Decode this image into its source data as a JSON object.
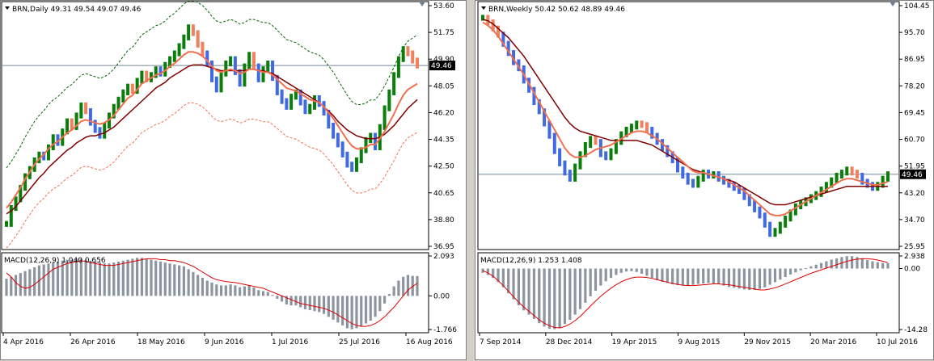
{
  "colors": {
    "bull": "#0a7d0a",
    "bear_dark": "#4169e1",
    "bear_light": "#f08060",
    "ma_fast": "#f07050",
    "ma_slow": "#800000",
    "envelope_up": "#006400",
    "envelope_dn": "#f07050",
    "macd_hist": "#8c94a0",
    "macd_signal": "#e00000",
    "price_line": "#778899"
  },
  "charts": [
    {
      "id": "daily",
      "header": "BRN,Daily  49.31 49.54 49.07 49.46",
      "current_price": "49.46",
      "price_axis": [
        "53.60",
        "51.75",
        "49.90",
        "48.05",
        "46.20",
        "44.35",
        "42.50",
        "40.65",
        "38.80",
        "36.95"
      ],
      "macd_header": "MACD(12,26,9) 1.040 0.656",
      "macd_axis": [
        "2.093",
        "0.00",
        "-1.766"
      ],
      "date_axis": [
        "4 Apr 2016",
        "26 Apr 2016",
        "18 May 2016",
        "9 Jun 2016",
        "1 Jul 2016",
        "25 Jul 2016",
        "16 Aug 2016"
      ],
      "chart_data": {
        "type": "bar",
        "title": "BRN,Daily",
        "ylim": [
          36.95,
          53.6
        ],
        "macd_ylim": [
          -1.766,
          2.093
        ],
        "closes": [
          38.5,
          39.6,
          40.2,
          41.0,
          41.8,
          42.3,
          42.9,
          43.3,
          43.1,
          43.8,
          44.5,
          44.1,
          44.9,
          45.6,
          45.2,
          46.0,
          46.7,
          46.3,
          45.5,
          45.0,
          44.6,
          45.3,
          46.0,
          46.6,
          47.1,
          47.6,
          48.0,
          47.7,
          48.4,
          48.9,
          48.5,
          48.8,
          49.2,
          48.9,
          49.5,
          49.9,
          50.3,
          50.8,
          51.4,
          52.1,
          51.7,
          50.9,
          50.3,
          49.6,
          48.5,
          47.8,
          48.9,
          49.6,
          49.9,
          49.0,
          48.2,
          49.4,
          50.2,
          49.4,
          48.5,
          49.2,
          49.6,
          48.6,
          47.6,
          47.0,
          46.6,
          47.3,
          47.6,
          46.9,
          46.3,
          46.6,
          47.2,
          46.8,
          46.2,
          45.3,
          44.6,
          44.0,
          43.3,
          42.6,
          42.3,
          42.9,
          43.6,
          44.3,
          44.6,
          43.8,
          45.2,
          46.5,
          47.6,
          48.8,
          49.9,
          50.6,
          50.3,
          49.8,
          49.46
        ],
        "ma_fast": [
          39.6,
          40.0,
          40.5,
          41.0,
          41.6,
          42.1,
          42.6,
          43.0,
          43.3,
          43.7,
          44.0,
          44.2,
          44.5,
          44.8,
          45.0,
          45.3,
          45.6,
          45.7,
          45.6,
          45.5,
          45.4,
          45.5,
          45.7,
          46.0,
          46.4,
          46.8,
          47.2,
          47.4,
          47.8,
          48.2,
          48.4,
          48.6,
          48.8,
          48.9,
          49.1,
          49.4,
          49.6,
          49.9,
          50.2,
          50.4,
          50.4,
          50.3,
          50.1,
          49.8,
          49.4,
          49.1,
          49.0,
          49.1,
          49.2,
          49.1,
          48.9,
          49.0,
          49.2,
          49.2,
          49.1,
          49.0,
          49.0,
          48.8,
          48.5,
          48.2,
          47.9,
          47.8,
          47.7,
          47.5,
          47.3,
          47.1,
          47.0,
          46.9,
          46.6,
          46.2,
          45.8,
          45.3,
          44.8,
          44.3,
          43.9,
          43.7,
          43.7,
          43.8,
          44.0,
          44.0,
          44.4,
          44.9,
          45.5,
          46.1,
          46.8,
          47.4,
          47.8,
          48.0,
          48.2
        ],
        "ma_slow": [
          39.2,
          39.4,
          39.7,
          40.1,
          40.5,
          40.9,
          41.3,
          41.7,
          42.0,
          42.4,
          42.7,
          43.0,
          43.3,
          43.6,
          43.8,
          44.1,
          44.3,
          44.5,
          44.6,
          44.6,
          44.7,
          44.8,
          45.0,
          45.2,
          45.5,
          45.8,
          46.1,
          46.4,
          46.7,
          47.0,
          47.3,
          47.6,
          47.9,
          48.1,
          48.3,
          48.6,
          48.8,
          49.0,
          49.2,
          49.4,
          49.5,
          49.5,
          49.5,
          49.4,
          49.3,
          49.2,
          49.1,
          49.1,
          49.1,
          49.1,
          49.1,
          49.1,
          49.2,
          49.2,
          49.1,
          49.1,
          49.0,
          48.9,
          48.7,
          48.5,
          48.3,
          48.1,
          47.9,
          47.7,
          47.5,
          47.3,
          47.1,
          46.9,
          46.6,
          46.3,
          46.0,
          45.6,
          45.3,
          45.0,
          44.8,
          44.6,
          44.5,
          44.4,
          44.4,
          44.4,
          44.5,
          44.7,
          45.0,
          45.3,
          45.7,
          46.1,
          46.5,
          46.8,
          47.1
        ],
        "macd_signal": [
          1.2,
          1.0,
          0.7,
          0.5,
          0.4,
          0.45,
          0.6,
          0.8,
          1.0,
          1.2,
          1.4,
          1.5,
          1.6,
          1.7,
          1.75,
          1.8,
          1.85,
          1.8,
          1.75,
          1.7,
          1.65,
          1.6,
          1.6,
          1.6,
          1.65,
          1.7,
          1.75,
          1.8,
          1.85,
          1.9,
          1.95,
          1.95,
          1.95,
          1.9,
          1.9,
          1.85,
          1.85,
          1.8,
          1.75,
          1.65,
          1.55,
          1.4,
          1.25,
          1.1,
          0.95,
          0.85,
          0.8,
          0.75,
          0.72,
          0.7,
          0.65,
          0.6,
          0.55,
          0.5,
          0.45,
          0.4,
          0.3,
          0.2,
          0.1,
          0.0,
          -0.1,
          -0.2,
          -0.3,
          -0.4,
          -0.45,
          -0.5,
          -0.55,
          -0.6,
          -0.65,
          -0.75,
          -0.85,
          -1.0,
          -1.15,
          -1.3,
          -1.45,
          -1.55,
          -1.6,
          -1.6,
          -1.55,
          -1.45,
          -1.3,
          -1.1,
          -0.85,
          -0.6,
          -0.3,
          0.0,
          0.3,
          0.5,
          0.656
        ],
        "macd_hist": [
          0.9,
          1.0,
          1.1,
          1.2,
          1.3,
          1.4,
          1.5,
          1.6,
          1.65,
          1.7,
          1.75,
          1.8,
          1.85,
          1.9,
          1.9,
          1.95,
          1.95,
          1.9,
          1.85,
          1.8,
          1.75,
          1.7,
          1.7,
          1.75,
          1.8,
          1.85,
          1.9,
          1.95,
          2.0,
          2.0,
          1.95,
          1.9,
          1.85,
          1.8,
          1.75,
          1.7,
          1.65,
          1.6,
          1.55,
          1.4,
          1.25,
          1.1,
          0.95,
          0.8,
          0.7,
          0.6,
          0.55,
          0.55,
          0.6,
          0.55,
          0.45,
          0.5,
          0.55,
          0.45,
          0.3,
          0.25,
          0.2,
          0.05,
          -0.15,
          -0.3,
          -0.45,
          -0.5,
          -0.5,
          -0.6,
          -0.7,
          -0.75,
          -0.8,
          -0.85,
          -0.95,
          -1.1,
          -1.25,
          -1.4,
          -1.55,
          -1.7,
          -1.75,
          -1.7,
          -1.6,
          -1.45,
          -1.3,
          -1.1,
          -0.8,
          -0.4,
          0.1,
          0.5,
          0.8,
          1.0,
          1.1,
          1.05,
          1.04
        ]
      }
    },
    {
      "id": "weekly",
      "header": "BRN,Weekly  50.42 50.62 48.89 49.46",
      "current_price": "49.46",
      "price_axis": [
        "104.45",
        "95.70",
        "86.95",
        "78.20",
        "69.45",
        "60.70",
        "51.95",
        "43.20",
        "34.70",
        "25.95"
      ],
      "macd_header": "MACD(12,26,9) 1.253 1.408",
      "macd_axis": [
        "2.938",
        "0.00",
        "-14.28"
      ],
      "date_axis": [
        "7 Sep 2014",
        "28 Dec 2014",
        "19 Apr 2015",
        "9 Aug 2015",
        "29 Nov 2015",
        "20 Mar 2016",
        "10 Jul 2016"
      ],
      "chart_data": {
        "type": "bar",
        "title": "BRN,Weekly",
        "ylim": [
          25.95,
          104.45
        ],
        "macd_ylim": [
          -14.28,
          2.938
        ],
        "closes": [
          100.5,
          99.0,
          97.0,
          95.0,
          92.0,
          89.0,
          86.0,
          84.0,
          80.0,
          77.0,
          73.0,
          70.0,
          66.0,
          62.0,
          57.0,
          53.0,
          50.0,
          48.0,
          52.0,
          56.0,
          59.0,
          61.0,
          60.0,
          56.0,
          55.0,
          57.0,
          60.0,
          62.5,
          64.0,
          65.0,
          66.0,
          65.5,
          64.0,
          62.0,
          60.0,
          58.0,
          56.0,
          54.0,
          51.0,
          49.0,
          47.0,
          46.0,
          48.0,
          50.0,
          49.0,
          49.5,
          48.0,
          47.0,
          46.0,
          45.0,
          44.0,
          42.0,
          40.0,
          38.0,
          36.0,
          33.0,
          30.0,
          31.0,
          33.0,
          35.0,
          37.0,
          39.0,
          40.0,
          41.0,
          42.0,
          43.0,
          44.5,
          46.0,
          47.5,
          49.0,
          50.0,
          51.0,
          50.0,
          49.0,
          47.0,
          46.0,
          45.0,
          46.0,
          48.0,
          49.46
        ],
        "ma_fast": [
          99.0,
          98.0,
          96.5,
          94.5,
          92.0,
          89.5,
          87.0,
          84.5,
          82.0,
          79.0,
          76.0,
          73.0,
          70.0,
          67.0,
          64.0,
          61.0,
          58.0,
          56.0,
          55.0,
          55.0,
          55.5,
          56.5,
          57.5,
          58.0,
          58.5,
          59.0,
          60.0,
          61.0,
          62.0,
          63.0,
          63.5,
          63.5,
          63.0,
          62.0,
          61.0,
          59.5,
          58.0,
          56.5,
          55.0,
          53.5,
          52.0,
          50.5,
          50.0,
          50.0,
          49.5,
          49.0,
          48.5,
          48.0,
          47.0,
          46.0,
          45.0,
          44.0,
          42.5,
          41.0,
          39.5,
          38.0,
          36.5,
          36.0,
          36.0,
          36.5,
          37.5,
          38.5,
          39.5,
          40.5,
          41.5,
          42.5,
          43.5,
          44.5,
          45.5,
          46.5,
          47.5,
          48.0,
          48.0,
          47.5,
          47.0,
          46.5,
          46.0,
          46.0,
          46.5,
          47.0
        ],
        "ma_slow": [
          100.0,
          99.5,
          98.5,
          97.0,
          95.5,
          94.0,
          92.0,
          90.0,
          88.0,
          85.5,
          83.0,
          80.5,
          78.0,
          75.5,
          73.0,
          70.5,
          68.0,
          66.0,
          64.5,
          63.5,
          63.0,
          62.5,
          62.0,
          61.5,
          61.0,
          60.5,
          60.5,
          60.5,
          60.5,
          60.5,
          60.5,
          60.0,
          59.5,
          59.0,
          58.0,
          57.0,
          56.0,
          55.0,
          54.0,
          53.0,
          52.0,
          51.0,
          50.5,
          50.0,
          49.5,
          49.0,
          48.5,
          48.0,
          47.5,
          47.0,
          46.0,
          45.0,
          44.0,
          43.0,
          42.0,
          41.0,
          40.0,
          39.5,
          39.5,
          39.5,
          40.0,
          40.5,
          41.0,
          41.5,
          42.0,
          42.5,
          43.0,
          43.5,
          44.0,
          44.5,
          45.0,
          45.5,
          45.5,
          45.5,
          45.5,
          45.5,
          45.5,
          45.5,
          45.5,
          45.5
        ],
        "macd_signal": [
          -0.5,
          -1.0,
          -1.8,
          -2.8,
          -4.0,
          -5.3,
          -6.6,
          -7.9,
          -9.0,
          -10.0,
          -11.0,
          -12.0,
          -12.8,
          -13.4,
          -13.8,
          -13.9,
          -13.6,
          -13.0,
          -12.2,
          -11.2,
          -10.0,
          -8.8,
          -7.6,
          -6.5,
          -5.5,
          -4.6,
          -3.8,
          -3.1,
          -2.6,
          -2.2,
          -2.0,
          -2.0,
          -2.1,
          -2.3,
          -2.6,
          -2.9,
          -3.2,
          -3.5,
          -3.7,
          -3.9,
          -4.0,
          -4.0,
          -3.9,
          -3.8,
          -3.7,
          -3.6,
          -3.6,
          -3.7,
          -3.8,
          -4.0,
          -4.2,
          -4.4,
          -4.6,
          -4.8,
          -5.0,
          -5.0,
          -4.8,
          -4.5,
          -4.1,
          -3.6,
          -3.1,
          -2.6,
          -2.1,
          -1.6,
          -1.1,
          -0.7,
          -0.3,
          0.1,
          0.5,
          0.9,
          1.3,
          1.7,
          2.0,
          2.2,
          2.3,
          2.3,
          2.2,
          2.0,
          1.7,
          1.408
        ],
        "macd_hist": [
          -1.0,
          -1.5,
          -2.2,
          -3.2,
          -4.4,
          -5.8,
          -7.2,
          -8.6,
          -9.8,
          -10.8,
          -11.8,
          -12.8,
          -13.6,
          -14.1,
          -14.2,
          -13.8,
          -13.0,
          -12.0,
          -10.8,
          -9.5,
          -8.0,
          -6.5,
          -5.2,
          -4.0,
          -3.0,
          -2.2,
          -1.5,
          -1.0,
          -0.7,
          -0.6,
          -0.8,
          -1.2,
          -1.7,
          -2.2,
          -2.7,
          -3.1,
          -3.4,
          -3.7,
          -3.9,
          -4.0,
          -4.0,
          -3.8,
          -3.6,
          -3.5,
          -3.4,
          -3.5,
          -3.7,
          -4.0,
          -4.3,
          -4.5,
          -4.7,
          -4.9,
          -5.0,
          -5.0,
          -4.8,
          -4.4,
          -3.8,
          -3.2,
          -2.6,
          -2.0,
          -1.4,
          -0.9,
          -0.4,
          0.1,
          0.5,
          0.9,
          1.3,
          1.7,
          2.1,
          2.4,
          2.7,
          2.9,
          2.9,
          2.7,
          2.4,
          2.0,
          1.7,
          1.5,
          1.3,
          1.25
        ]
      }
    }
  ]
}
